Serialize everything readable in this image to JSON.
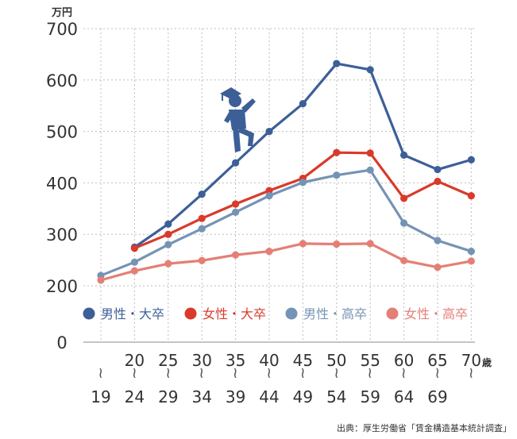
{
  "chart_data": {
    "type": "line",
    "title": "",
    "ylabel_unit": "万円",
    "x_unit": "歳",
    "ylim": [
      0,
      700
    ],
    "y_ticks": [
      0,
      200,
      300,
      400,
      500,
      600,
      700
    ],
    "x_start": [
      "",
      "20",
      "25",
      "30",
      "35",
      "40",
      "45",
      "50",
      "55",
      "60",
      "65",
      "70"
    ],
    "x_end": [
      "19",
      "24",
      "29",
      "34",
      "39",
      "44",
      "49",
      "54",
      "59",
      "64",
      "69",
      ""
    ],
    "series": [
      {
        "name": "男性・大卒",
        "color": "#3d5f97",
        "values": [
          null,
          275,
          320,
          378,
          439,
          500,
          554,
          632,
          620,
          454,
          426,
          445
        ]
      },
      {
        "name": "女性・大卒",
        "color": "#d93a2a",
        "values": [
          null,
          273,
          300,
          331,
          359,
          385,
          409,
          459,
          458,
          370,
          403,
          375
        ]
      },
      {
        "name": "男性・高卒",
        "color": "#7593b4",
        "values": [
          220,
          246,
          280,
          311,
          343,
          375,
          401,
          415,
          425,
          322,
          288,
          267
        ]
      },
      {
        "name": "女性・高卒",
        "color": "#e47f76",
        "values": [
          211,
          229,
          243,
          249,
          260,
          267,
          282,
          281,
          282,
          249,
          236,
          248
        ]
      }
    ],
    "legend_position": "middle",
    "grid": true,
    "source": "出典：厚生労働省「賃金構造基本統計調査」",
    "illustration": "climbing-graduate-icon"
  }
}
